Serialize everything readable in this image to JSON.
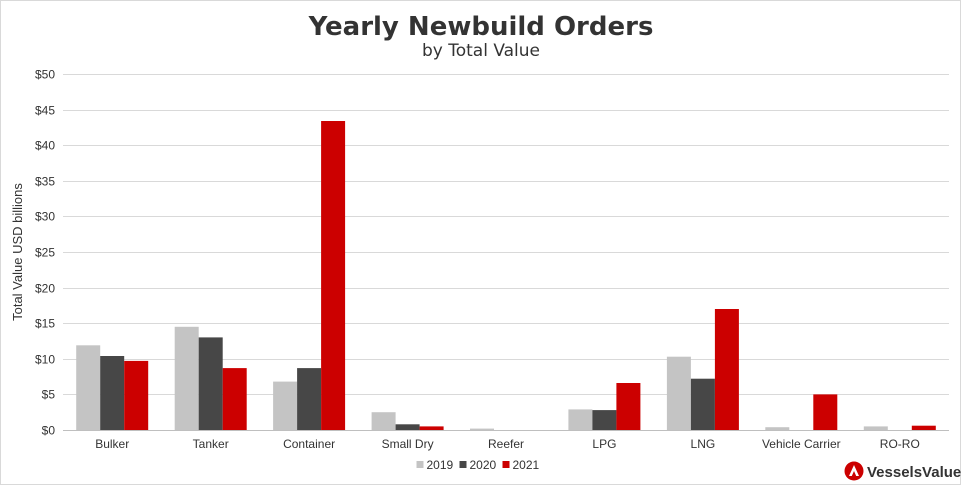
{
  "chart_data": {
    "type": "bar",
    "title": "Yearly Newbuild Orders",
    "subtitle": "by Total Value",
    "ylabel": "Total Value USD billions",
    "xlabel": "",
    "ylim": [
      0,
      50
    ],
    "ytick_step": 5,
    "ytick_prefix": "$",
    "grid": true,
    "legend_position": "bottom-center",
    "categories": [
      "Bulker",
      "Tanker",
      "Container",
      "Small Dry",
      "Reefer",
      "LPG",
      "LNG",
      "Vehicle Carrier",
      "RO-RO"
    ],
    "series": [
      {
        "name": "2019",
        "color": "#c4c4c4",
        "values": [
          11.9,
          14.5,
          6.8,
          2.5,
          0.2,
          2.9,
          10.3,
          0.4,
          0.5
        ]
      },
      {
        "name": "2020",
        "color": "#474747",
        "values": [
          10.4,
          13.0,
          8.7,
          0.8,
          0.0,
          2.8,
          7.2,
          0.0,
          0.0
        ]
      },
      {
        "name": "2021",
        "color": "#cc0000",
        "values": [
          9.7,
          8.7,
          43.4,
          0.5,
          0.0,
          6.6,
          17.0,
          5.0,
          0.6
        ]
      }
    ]
  },
  "brand": {
    "name": "VesselsValue",
    "color": "#cc0000"
  }
}
